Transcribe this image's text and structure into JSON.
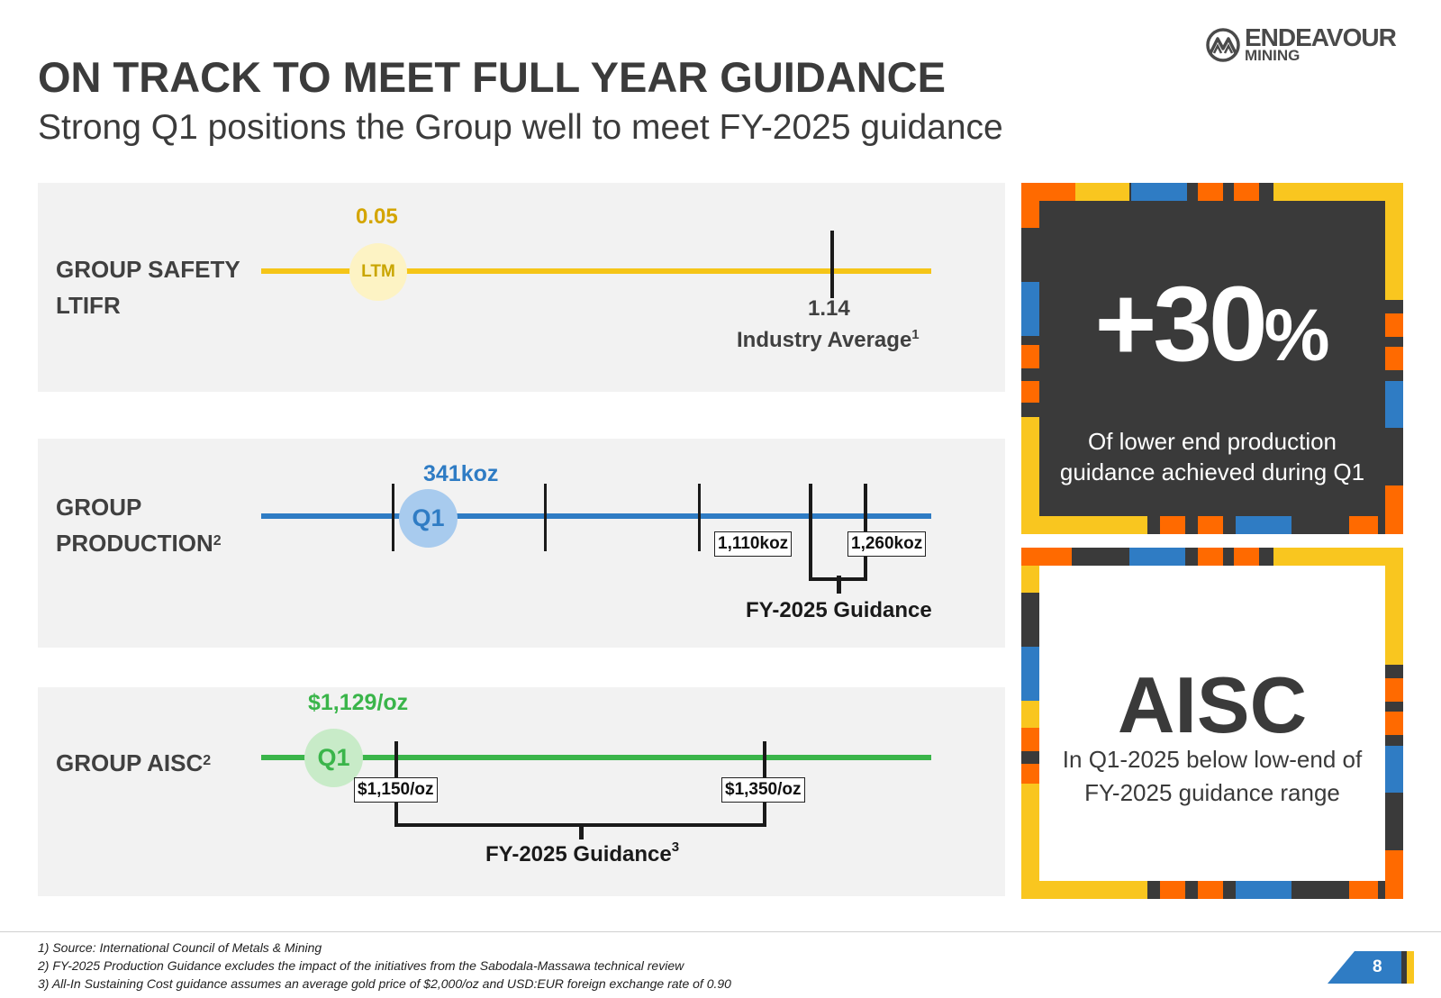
{
  "header": {
    "title": "ON TRACK TO MEET FULL YEAR GUIDANCE",
    "subtitle": "Strong Q1 positions the Group well to meet FY-2025 guidance"
  },
  "logo": {
    "icon": "mountain-logo-icon",
    "line1": "ENDEAVOUR",
    "line2": "MINING"
  },
  "colors": {
    "safety": "#f5c518",
    "production": "#2f7cc4",
    "aisc": "#3ab54a",
    "dark": "#3a3a3a",
    "orange": "#ff6a00",
    "blue": "#2f7cc4",
    "yellow": "#f9c61f"
  },
  "safety": {
    "label_line1": "GROUP SAFETY",
    "label_line2": "LTIFR",
    "value": "0.05",
    "marker": "LTM",
    "industry_value": "1.14",
    "industry_label": "Industry Average",
    "industry_sup": "1"
  },
  "production": {
    "label_line1": "GROUP",
    "label_line2": "PRODUCTION",
    "label_sup": "2",
    "value": "341koz",
    "marker": "Q1",
    "low": "1,110koz",
    "high": "1,260koz",
    "guidance_label": "FY-2025 Guidance"
  },
  "aisc": {
    "label": "GROUP AISC",
    "label_sup": "2",
    "value": "$1,129/oz",
    "marker": "Q1",
    "low": "$1,150/oz",
    "high": "$1,350/oz",
    "guidance_label": "FY-2025 Guidance",
    "guidance_sup": "3"
  },
  "cards": {
    "top": {
      "stat": "+30",
      "pct": "%",
      "desc_line1": "Of lower end production",
      "desc_line2": "guidance achieved during Q1"
    },
    "bottom": {
      "stat": "AISC",
      "desc_line1": "In Q1-2025 below low-end of",
      "desc_line2": "FY-2025 guidance range"
    }
  },
  "footnotes": [
    "1) Source: International Council of Metals & Mining",
    "2) FY-2025 Production Guidance excludes the impact of the initiatives from the Sabodala-Massawa technical review",
    "3) All-In Sustaining Cost guidance assumes an average gold price of $2,000/oz and USD:EUR foreign exchange rate of 0.90"
  ],
  "page_number": "8"
}
